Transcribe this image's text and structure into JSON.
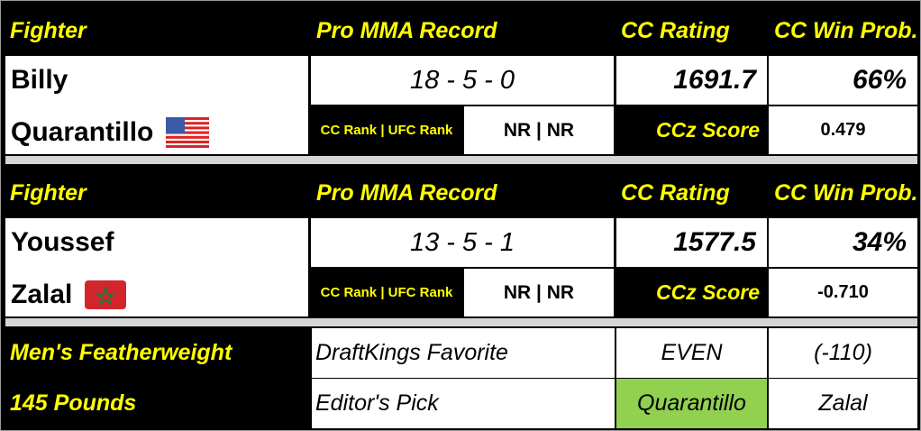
{
  "headers": {
    "fighter": "Fighter",
    "record": "Pro MMA Record",
    "rating": "CC Rating",
    "win_prob": "CC Win Prob."
  },
  "fighters": [
    {
      "first": "Billy",
      "last": "Quarantillo",
      "flag": "us-flag-icon",
      "record": "18 - 5 - 0",
      "rating": "1691.7",
      "win_prob": "66%",
      "rank_label": "CC Rank | UFC Rank",
      "rank": "NR | NR",
      "ccz_label": "CCz Score",
      "ccz": "0.479"
    },
    {
      "first": "Youssef",
      "last": "Zalal",
      "flag": "morocco-flag-icon",
      "record": "13 - 5 - 1",
      "rating": "1577.5",
      "win_prob": "34%",
      "rank_label": "CC Rank | UFC Rank",
      "rank": "NR | NR",
      "ccz_label": "CCz Score",
      "ccz": "-0.710"
    }
  ],
  "footer": {
    "division": "Men's Featherweight",
    "weight": "145 Pounds",
    "dk_label": "DraftKings Favorite",
    "dk_value": "EVEN",
    "dk_odds": "(-110)",
    "pick_label": "Editor's Pick",
    "pick_value": "Quarantillo",
    "pick_other": "Zalal"
  },
  "colors": {
    "header_text": "#ffff00",
    "pick_highlight": "#92d050",
    "separator": "#d6d6d6"
  }
}
